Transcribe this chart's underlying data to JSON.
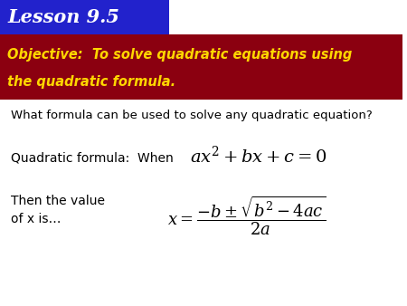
{
  "title": "Lesson 9.5",
  "title_bg": "#2222CC",
  "title_fg": "#FFFFFF",
  "objective_bg": "#8B0010",
  "objective_fg": "#FFD700",
  "objective_line1": "Objective:  To solve quadratic equations using",
  "objective_line2": "the quadratic formula.",
  "body_bg": "#FFFFFF",
  "question_text": "What formula can be used to solve any quadratic equation?",
  "label_text": "Quadratic formula:  When",
  "then_text": "Then the value\nof x is…",
  "fig_width": 4.5,
  "fig_height": 3.38,
  "dpi": 100
}
